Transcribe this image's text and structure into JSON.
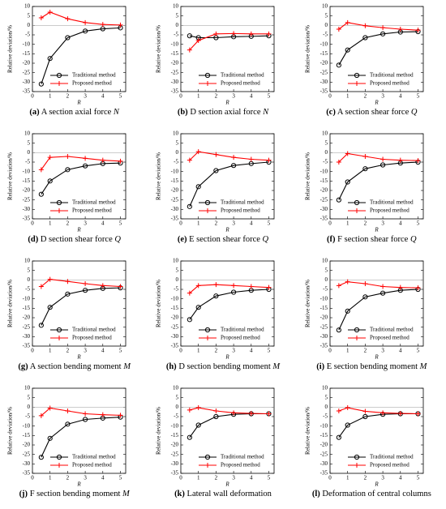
{
  "chart_data": [
    {
      "type": "line",
      "caption": {
        "label": "(a)",
        "text": "A section axial force",
        "symbol": "N"
      },
      "xlabel": "R",
      "ylabel": "Relative deviation/%",
      "x": [
        0.5,
        1,
        2,
        3,
        4,
        5
      ],
      "xlim": [
        0,
        5.3
      ],
      "ylim": [
        -35,
        10
      ],
      "xticks": [
        0,
        1,
        2,
        3,
        4,
        5
      ],
      "yticks": [
        -35,
        -30,
        -25,
        -20,
        -15,
        -10,
        -5,
        0,
        5,
        10
      ],
      "zero_line": true,
      "legend": "lower right",
      "series": [
        {
          "name": "Traditional method",
          "color": "#000000",
          "marker": "circle",
          "values": [
            -31,
            -17.5,
            -6.5,
            -3,
            -1.8,
            -1.3
          ]
        },
        {
          "name": "Proposed method",
          "color": "#ff0000",
          "marker": "plus",
          "values": [
            4,
            7,
            3.5,
            1.5,
            0.5,
            0.2
          ]
        }
      ]
    },
    {
      "type": "line",
      "caption": {
        "label": "(b)",
        "text": "D section axial force",
        "symbol": "N"
      },
      "xlabel": "R",
      "ylabel": "Relative deviation/%",
      "x": [
        0.5,
        1,
        2,
        3,
        4,
        5
      ],
      "xlim": [
        0,
        5.3
      ],
      "ylim": [
        -35,
        10
      ],
      "xticks": [
        0,
        1,
        2,
        3,
        4,
        5
      ],
      "yticks": [
        -35,
        -30,
        -25,
        -20,
        -15,
        -10,
        -5,
        0,
        5,
        10
      ],
      "zero_line": true,
      "legend": "lower right",
      "series": [
        {
          "name": "Traditional method",
          "color": "#000000",
          "marker": "circle",
          "values": [
            -5.5,
            -6.5,
            -6.5,
            -6,
            -5.8,
            -5.5
          ]
        },
        {
          "name": "Proposed method",
          "color": "#ff0000",
          "marker": "plus",
          "values": [
            -13,
            -8,
            -4.5,
            -4.3,
            -4.5,
            -4.5
          ]
        }
      ]
    },
    {
      "type": "line",
      "caption": {
        "label": "(c)",
        "text": "A section shear force",
        "symbol": "Q"
      },
      "xlabel": "R",
      "ylabel": "Relative deviation/%",
      "x": [
        0.5,
        1,
        2,
        3,
        4,
        5
      ],
      "xlim": [
        0,
        5.3
      ],
      "ylim": [
        -35,
        10
      ],
      "xticks": [
        0,
        1,
        2,
        3,
        4,
        5
      ],
      "yticks": [
        -35,
        -30,
        -25,
        -20,
        -15,
        -10,
        -5,
        0,
        5,
        10
      ],
      "zero_line": true,
      "legend": "lower right",
      "series": [
        {
          "name": "Traditional method",
          "color": "#000000",
          "marker": "circle",
          "values": [
            -21,
            -13,
            -6.5,
            -4.5,
            -3.5,
            -3.3
          ]
        },
        {
          "name": "Proposed method",
          "color": "#ff0000",
          "marker": "plus",
          "values": [
            -2,
            1.5,
            -0.2,
            -1.2,
            -2,
            -2.5
          ]
        }
      ]
    },
    {
      "type": "line",
      "caption": {
        "label": "(d)",
        "text": "D section shear force",
        "symbol": "Q"
      },
      "xlabel": "R",
      "ylabel": "Relative deviation/%",
      "x": [
        0.5,
        1,
        2,
        3,
        4,
        5
      ],
      "xlim": [
        0,
        5.3
      ],
      "ylim": [
        -35,
        10
      ],
      "xticks": [
        0,
        1,
        2,
        3,
        4,
        5
      ],
      "yticks": [
        -35,
        -30,
        -25,
        -20,
        -15,
        -10,
        -5,
        0,
        5,
        10
      ],
      "zero_line": true,
      "legend": "lower right",
      "series": [
        {
          "name": "Traditional method",
          "color": "#000000",
          "marker": "circle",
          "values": [
            -22,
            -15,
            -9,
            -7,
            -5.8,
            -5.5
          ]
        },
        {
          "name": "Proposed method",
          "color": "#ff0000",
          "marker": "plus",
          "values": [
            -9,
            -2.5,
            -2,
            -3,
            -4,
            -4.5
          ]
        }
      ]
    },
    {
      "type": "line",
      "caption": {
        "label": "(e)",
        "text": "E section shear force",
        "symbol": "Q"
      },
      "xlabel": "R",
      "ylabel": "Relative deviation/%",
      "x": [
        0.5,
        1,
        2,
        3,
        4,
        5
      ],
      "xlim": [
        0,
        5.3
      ],
      "ylim": [
        -35,
        10
      ],
      "xticks": [
        0,
        1,
        2,
        3,
        4,
        5
      ],
      "yticks": [
        -35,
        -30,
        -25,
        -20,
        -15,
        -10,
        -5,
        0,
        5,
        10
      ],
      "zero_line": true,
      "legend": "lower right",
      "series": [
        {
          "name": "Traditional method",
          "color": "#000000",
          "marker": "circle",
          "values": [
            -28.5,
            -18,
            -9.5,
            -6.8,
            -5.8,
            -5
          ]
        },
        {
          "name": "Proposed method",
          "color": "#ff0000",
          "marker": "plus",
          "values": [
            -4,
            0.5,
            -1,
            -2.5,
            -3.5,
            -4
          ]
        }
      ]
    },
    {
      "type": "line",
      "caption": {
        "label": "(f)",
        "text": "F section shear force",
        "symbol": "Q"
      },
      "xlabel": "R",
      "ylabel": "Relative deviation/%",
      "x": [
        0.5,
        1,
        2,
        3,
        4,
        5
      ],
      "xlim": [
        0,
        5.3
      ],
      "ylim": [
        -35,
        10
      ],
      "xticks": [
        0,
        1,
        2,
        3,
        4,
        5
      ],
      "yticks": [
        -35,
        -30,
        -25,
        -20,
        -15,
        -10,
        -5,
        0,
        5,
        10
      ],
      "zero_line": true,
      "legend": "lower right",
      "series": [
        {
          "name": "Traditional method",
          "color": "#000000",
          "marker": "circle",
          "values": [
            -25,
            -15.5,
            -8.5,
            -6.5,
            -5.5,
            -5
          ]
        },
        {
          "name": "Proposed method",
          "color": "#ff0000",
          "marker": "plus",
          "values": [
            -5,
            -0.5,
            -2,
            -3.5,
            -4,
            -4.2
          ]
        }
      ]
    },
    {
      "type": "line",
      "caption": {
        "label": "(g)",
        "text": "A section bending moment",
        "symbol": "M"
      },
      "xlabel": "R",
      "ylabel": "Relative deviation/%",
      "x": [
        0.5,
        1,
        2,
        3,
        4,
        5
      ],
      "xlim": [
        0,
        5.3
      ],
      "ylim": [
        -35,
        10
      ],
      "xticks": [
        0,
        1,
        2,
        3,
        4,
        5
      ],
      "yticks": [
        -35,
        -30,
        -25,
        -20,
        -15,
        -10,
        -5,
        0,
        5,
        10
      ],
      "zero_line": true,
      "legend": "lower right",
      "series": [
        {
          "name": "Traditional method",
          "color": "#000000",
          "marker": "circle",
          "values": [
            -24,
            -14.5,
            -7.5,
            -5.5,
            -4.5,
            -4.2
          ]
        },
        {
          "name": "Proposed method",
          "color": "#ff0000",
          "marker": "plus",
          "values": [
            -3.5,
            0.3,
            -0.8,
            -2,
            -3,
            -3.5
          ]
        }
      ]
    },
    {
      "type": "line",
      "caption": {
        "label": "(h)",
        "text": "D section bending moment",
        "symbol": "M"
      },
      "xlabel": "R",
      "ylabel": "Relative deviation/%",
      "x": [
        0.5,
        1,
        2,
        3,
        4,
        5
      ],
      "xlim": [
        0,
        5.3
      ],
      "ylim": [
        -35,
        10
      ],
      "xticks": [
        0,
        1,
        2,
        3,
        4,
        5
      ],
      "yticks": [
        -35,
        -30,
        -25,
        -20,
        -15,
        -10,
        -5,
        0,
        5,
        10
      ],
      "zero_line": true,
      "legend": "lower right",
      "series": [
        {
          "name": "Traditional method",
          "color": "#000000",
          "marker": "circle",
          "values": [
            -21,
            -14.5,
            -8.5,
            -6.5,
            -5.5,
            -5
          ]
        },
        {
          "name": "Proposed method",
          "color": "#ff0000",
          "marker": "plus",
          "values": [
            -7,
            -3,
            -2.5,
            -3,
            -3.5,
            -4
          ]
        }
      ]
    },
    {
      "type": "line",
      "caption": {
        "label": "(i)",
        "text": "E section bending moment",
        "symbol": "M"
      },
      "xlabel": "R",
      "ylabel": "Relative deviation/%",
      "x": [
        0.5,
        1,
        2,
        3,
        4,
        5
      ],
      "xlim": [
        0,
        5.3
      ],
      "ylim": [
        -35,
        10
      ],
      "xticks": [
        0,
        1,
        2,
        3,
        4,
        5
      ],
      "yticks": [
        -35,
        -30,
        -25,
        -20,
        -15,
        -10,
        -5,
        0,
        5,
        10
      ],
      "zero_line": true,
      "legend": "lower right",
      "series": [
        {
          "name": "Traditional method",
          "color": "#000000",
          "marker": "circle",
          "values": [
            -26.5,
            -16.5,
            -9,
            -7,
            -5.5,
            -5
          ]
        },
        {
          "name": "Proposed method",
          "color": "#ff0000",
          "marker": "plus",
          "values": [
            -3,
            -1,
            -2,
            -3.5,
            -4,
            -4.2
          ]
        }
      ]
    },
    {
      "type": "line",
      "caption": {
        "label": "(j)",
        "text": "F section bending moment",
        "symbol": "M"
      },
      "xlabel": "R",
      "ylabel": "Relative deviation/%",
      "x": [
        0.5,
        1,
        2,
        3,
        4,
        5
      ],
      "xlim": [
        0,
        5.3
      ],
      "ylim": [
        -35,
        10
      ],
      "xticks": [
        0,
        1,
        2,
        3,
        4,
        5
      ],
      "yticks": [
        -35,
        -30,
        -25,
        -20,
        -15,
        -10,
        -5,
        0,
        5,
        10
      ],
      "zero_line": true,
      "legend": "lower right",
      "series": [
        {
          "name": "Traditional method",
          "color": "#000000",
          "marker": "circle",
          "values": [
            -26.5,
            -16.5,
            -9,
            -6.5,
            -5.8,
            -5.3
          ]
        },
        {
          "name": "Proposed method",
          "color": "#ff0000",
          "marker": "plus",
          "values": [
            -4.5,
            -0.5,
            -2,
            -3.5,
            -4,
            -4.3
          ]
        }
      ]
    },
    {
      "type": "line",
      "caption": {
        "label": "(k)",
        "text": "Lateral wall deformation"
      },
      "xlabel": "R",
      "ylabel": "Relative deviation/%",
      "x": [
        0.5,
        1,
        2,
        3,
        4,
        5
      ],
      "xlim": [
        0,
        5.3
      ],
      "ylim": [
        -35,
        10
      ],
      "xticks": [
        0,
        1,
        2,
        3,
        4,
        5
      ],
      "yticks": [
        -35,
        -30,
        -25,
        -20,
        -15,
        -10,
        -5,
        0,
        5,
        10
      ],
      "zero_line": true,
      "legend": "lower right",
      "series": [
        {
          "name": "Traditional method",
          "color": "#000000",
          "marker": "circle",
          "values": [
            -16,
            -9.5,
            -5,
            -3.8,
            -3.5,
            -3.5
          ]
        },
        {
          "name": "Proposed method",
          "color": "#ff0000",
          "marker": "plus",
          "values": [
            -1.5,
            -0.3,
            -2,
            -3,
            -3.3,
            -3.5
          ]
        }
      ]
    },
    {
      "type": "line",
      "caption": {
        "label": "(l)",
        "text": "Deformation of central columns"
      },
      "xlabel": "R",
      "ylabel": "Relative deviation/%",
      "x": [
        0.5,
        1,
        2,
        3,
        4,
        5
      ],
      "xlim": [
        0,
        5.3
      ],
      "ylim": [
        -35,
        10
      ],
      "xticks": [
        0,
        1,
        2,
        3,
        4,
        5
      ],
      "yticks": [
        -35,
        -30,
        -25,
        -20,
        -15,
        -10,
        -5,
        0,
        5,
        10
      ],
      "zero_line": true,
      "legend": "lower right",
      "series": [
        {
          "name": "Traditional method",
          "color": "#000000",
          "marker": "circle",
          "values": [
            -16,
            -9.5,
            -5,
            -3.8,
            -3.5,
            -3.5
          ]
        },
        {
          "name": "Proposed method",
          "color": "#ff0000",
          "marker": "plus",
          "values": [
            -2,
            -0.3,
            -2.2,
            -3,
            -3.3,
            -3.5
          ]
        }
      ]
    }
  ]
}
